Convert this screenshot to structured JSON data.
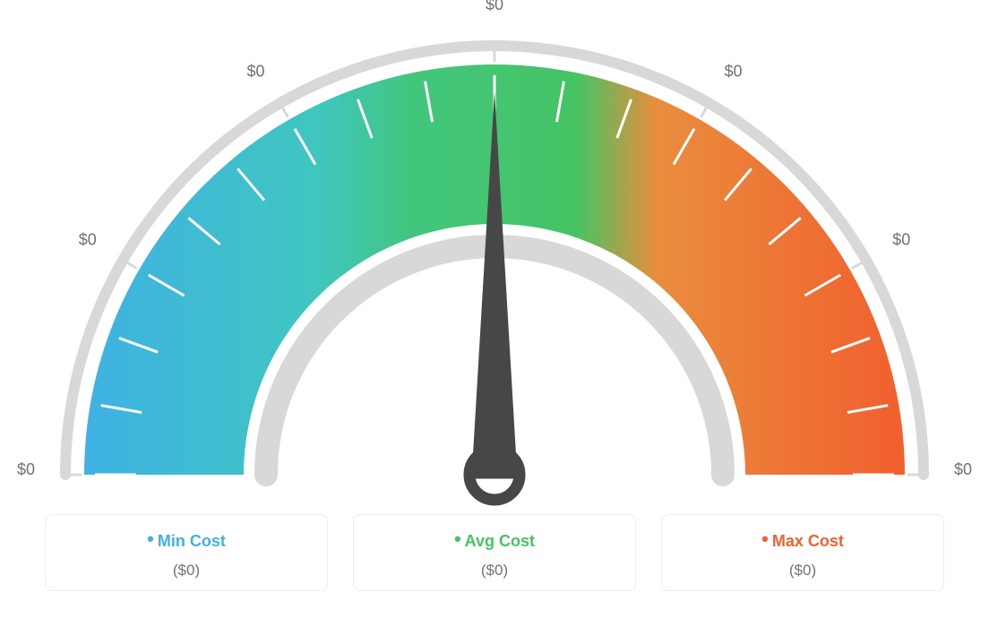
{
  "gauge": {
    "labels": [
      "$0",
      "$0",
      "$0",
      "$0",
      "$0",
      "$0",
      "$0"
    ],
    "label_color": "#6d7278",
    "label_fontsize": 18,
    "zones": [
      {
        "start_color": "#3fb2e3",
        "end_color": "#3fc1d6"
      },
      {
        "start_color": "#40c1a3",
        "end_color": "#45c464"
      },
      {
        "start_color": "#f08a3a",
        "end_color": "#f1602f"
      }
    ],
    "outer_ring_color": "#d8d8d8",
    "inner_ring_color": "#d8d8d8",
    "tick_color": "#ffffff",
    "needle_color": "#474747",
    "background_color": "#ffffff",
    "n_minor_ticks": 18
  },
  "legend": {
    "border_color": "#ececec",
    "value_color": "#6d7278",
    "items": [
      {
        "label": "Min Cost",
        "value": "($0)",
        "color": "#3fb2e3"
      },
      {
        "label": "Avg Cost",
        "value": "($0)",
        "color": "#45c464"
      },
      {
        "label": "Max Cost",
        "value": "($0)",
        "color": "#f1602f"
      }
    ]
  }
}
